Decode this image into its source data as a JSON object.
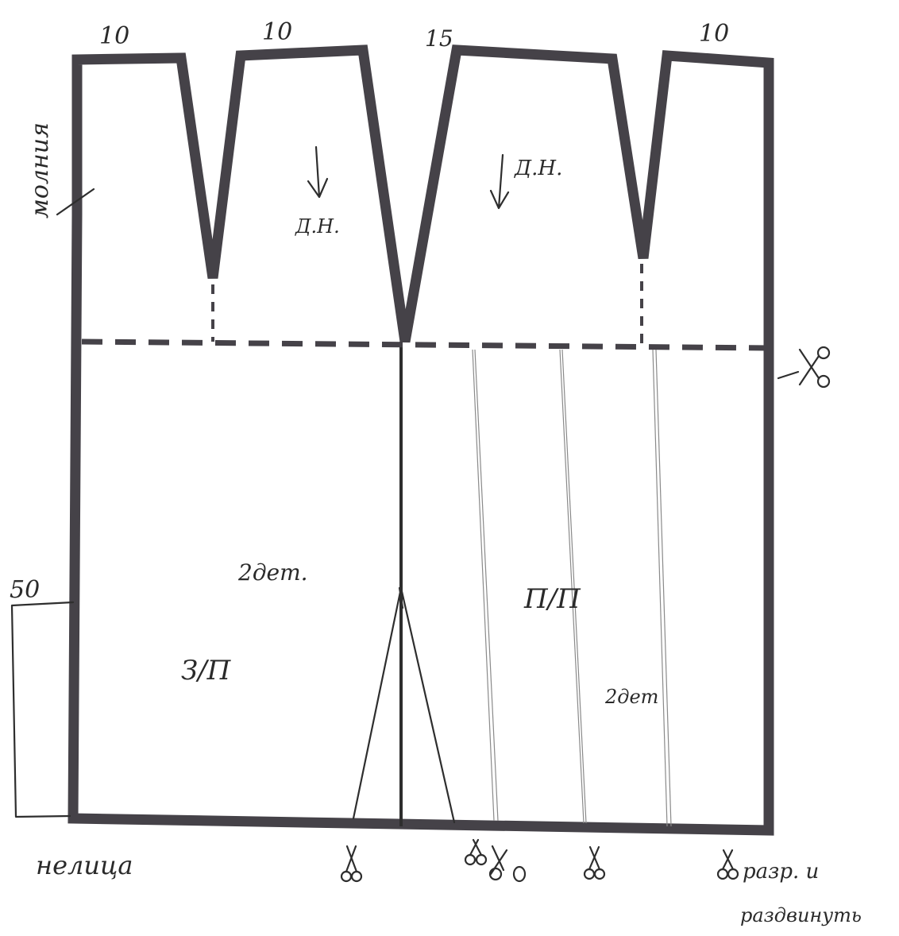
{
  "dart_labels": {
    "d1": "10",
    "d2": "10",
    "d3": "15",
    "d4": "10"
  },
  "left_side_label": "молния",
  "grain_back": "Д.Н.",
  "grain_front": "Д.Н.",
  "back_count": "2дет.",
  "back_marker": "З/П",
  "front_marker": "П/П",
  "front_count": "2дет",
  "dim_label": "50",
  "hem_label": "нелица",
  "cut_note_line1": "разр. и",
  "cut_note_line2": "раздвинуть",
  "ink_color": "#454248"
}
